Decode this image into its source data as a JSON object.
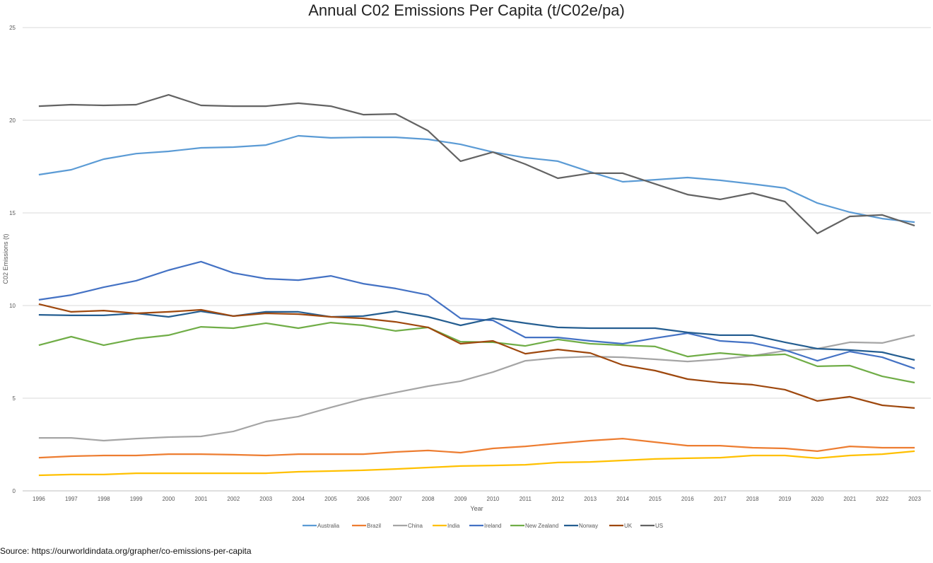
{
  "chart_data": {
    "type": "line",
    "title": "Annual C02 Emissions Per Capita (t/C02e/pa)",
    "xlabel": "Year",
    "ylabel": "C02 Emissions (t)",
    "ylim": [
      0,
      25
    ],
    "yticks": [
      0,
      5,
      10,
      15,
      20,
      25
    ],
    "grid": true,
    "legend": "bottom",
    "categories": [
      "1996",
      "1997",
      "1998",
      "1999",
      "2000",
      "2001",
      "2002",
      "2003",
      "2004",
      "2005",
      "2006",
      "2007",
      "2008",
      "2009",
      "2010",
      "2011",
      "2012",
      "2013",
      "2014",
      "2015",
      "2016",
      "2017",
      "2018",
      "2019",
      "2020",
      "2021",
      "2022",
      "2023"
    ],
    "series": [
      {
        "name": "Australia",
        "color": "#5B9BD5",
        "values": [
          17.06,
          17.33,
          17.9,
          18.2,
          18.32,
          18.51,
          18.55,
          18.66,
          19.16,
          19.05,
          19.08,
          19.08,
          18.97,
          18.7,
          18.28,
          17.98,
          17.79,
          17.21,
          16.68,
          16.79,
          16.91,
          16.76,
          16.56,
          16.34,
          15.53,
          15.04,
          14.69,
          14.5
        ]
      },
      {
        "name": "Brazil",
        "color": "#ED7D31",
        "values": [
          1.79,
          1.87,
          1.91,
          1.91,
          1.98,
          1.98,
          1.95,
          1.91,
          1.98,
          1.98,
          1.98,
          2.1,
          2.18,
          2.06,
          2.29,
          2.4,
          2.56,
          2.71,
          2.82,
          2.63,
          2.44,
          2.44,
          2.33,
          2.29,
          2.14,
          2.4,
          2.33,
          2.33
        ]
      },
      {
        "name": "China",
        "color": "#A5A5A5",
        "values": [
          2.86,
          2.86,
          2.71,
          2.82,
          2.9,
          2.94,
          3.21,
          3.74,
          4.01,
          4.5,
          4.96,
          5.31,
          5.65,
          5.92,
          6.41,
          7.02,
          7.18,
          7.25,
          7.21,
          7.1,
          6.98,
          7.1,
          7.29,
          7.56,
          7.67,
          8.02,
          7.98,
          8.4
        ]
      },
      {
        "name": "India",
        "color": "#FFC000",
        "values": [
          0.84,
          0.88,
          0.88,
          0.95,
          0.95,
          0.95,
          0.95,
          0.95,
          1.03,
          1.07,
          1.11,
          1.18,
          1.26,
          1.34,
          1.37,
          1.41,
          1.53,
          1.56,
          1.64,
          1.72,
          1.76,
          1.79,
          1.91,
          1.91,
          1.76,
          1.91,
          1.98,
          2.14
        ]
      },
      {
        "name": "Ireland",
        "color": "#4472C4",
        "values": [
          10.31,
          10.57,
          10.99,
          11.34,
          11.91,
          12.37,
          11.76,
          11.45,
          11.37,
          11.6,
          11.18,
          10.92,
          10.57,
          9.31,
          9.2,
          8.28,
          8.28,
          8.09,
          7.94,
          8.24,
          8.51,
          8.09,
          7.98,
          7.6,
          7.02,
          7.52,
          7.21,
          6.6
        ]
      },
      {
        "name": "New Zealand",
        "color": "#70AD47",
        "values": [
          7.86,
          8.32,
          7.86,
          8.21,
          8.4,
          8.85,
          8.78,
          9.05,
          8.78,
          9.08,
          8.93,
          8.63,
          8.82,
          8.05,
          8.02,
          7.82,
          8.17,
          7.94,
          7.86,
          7.79,
          7.25,
          7.44,
          7.29,
          7.37,
          6.72,
          6.76,
          6.18,
          5.84
        ]
      },
      {
        "name": "Norway",
        "color": "#255E91",
        "values": [
          9.5,
          9.47,
          9.47,
          9.58,
          9.39,
          9.69,
          9.43,
          9.66,
          9.66,
          9.39,
          9.43,
          9.69,
          9.39,
          8.93,
          9.31,
          9.05,
          8.82,
          8.78,
          8.78,
          8.78,
          8.55,
          8.4,
          8.4,
          8.02,
          7.67,
          7.6,
          7.48,
          7.06
        ]
      },
      {
        "name": "UK",
        "color": "#9E480E",
        "values": [
          10.08,
          9.66,
          9.73,
          9.58,
          9.66,
          9.77,
          9.43,
          9.58,
          9.54,
          9.39,
          9.31,
          9.12,
          8.82,
          7.94,
          8.09,
          7.4,
          7.63,
          7.44,
          6.79,
          6.49,
          6.03,
          5.84,
          5.73,
          5.46,
          4.85,
          5.08,
          4.62,
          4.47
        ]
      },
      {
        "name": "US",
        "color": "#636363",
        "values": [
          20.76,
          20.84,
          20.8,
          20.84,
          21.37,
          20.8,
          20.76,
          20.76,
          20.92,
          20.76,
          20.3,
          20.34,
          19.43,
          17.79,
          18.28,
          17.63,
          16.87,
          17.14,
          17.14,
          16.56,
          15.99,
          15.73,
          16.07,
          15.61,
          13.89,
          14.81,
          14.89,
          14.31
        ]
      }
    ]
  },
  "source": "Source: https://ourworldindata.org/grapher/co-emissions-per-capita"
}
